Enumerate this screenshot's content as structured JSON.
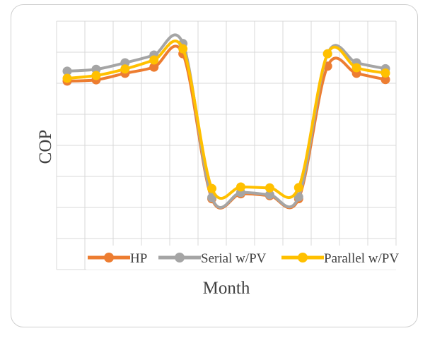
{
  "chart_data": {
    "type": "line",
    "title": "",
    "xlabel": "Month",
    "ylabel": "COP",
    "x": [
      1,
      2,
      3,
      4,
      5,
      6,
      7,
      8,
      9,
      10,
      11,
      12
    ],
    "ylim": [
      0,
      8
    ],
    "y_ticks_shown": false,
    "x_ticks_shown": false,
    "grid": true,
    "legend_position": "bottom-inside",
    "series": [
      {
        "name": "HP",
        "color": "#ed7d31",
        "values": [
          6.07,
          6.11,
          6.32,
          6.52,
          6.95,
          2.28,
          2.44,
          2.38,
          2.28,
          6.55,
          6.32,
          6.12
        ]
      },
      {
        "name": "Serial w/PV",
        "color": "#a5a5a5",
        "values": [
          6.39,
          6.45,
          6.66,
          6.91,
          7.28,
          2.32,
          2.48,
          2.41,
          2.34,
          6.95,
          6.66,
          6.47
        ]
      },
      {
        "name": "Parallel w/PV",
        "color": "#ffc000",
        "values": [
          6.16,
          6.25,
          6.46,
          6.75,
          7.11,
          2.61,
          2.66,
          2.63,
          2.64,
          6.95,
          6.5,
          6.33
        ]
      }
    ]
  }
}
